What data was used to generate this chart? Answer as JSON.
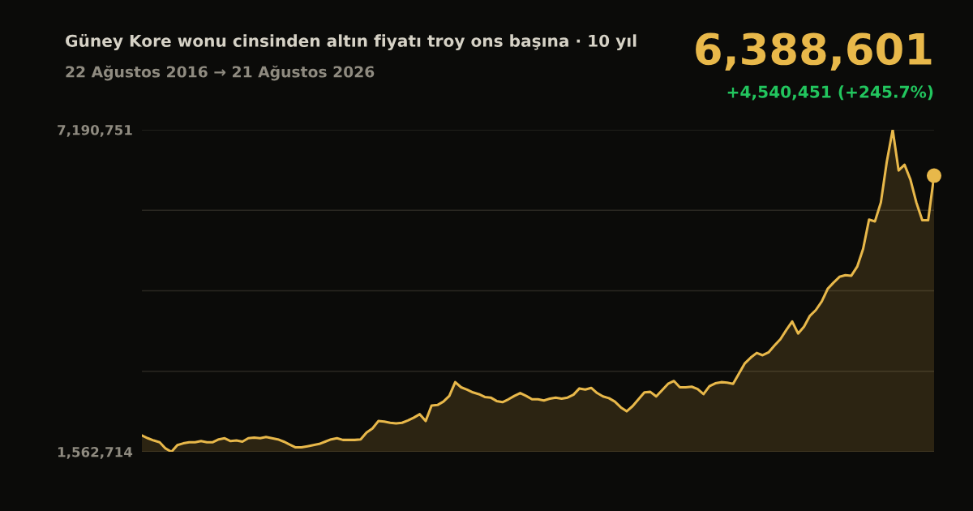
{
  "chart_data": {
    "type": "area",
    "title": "Güney Kore wonu cinsinden altın fiyatı troy ons başına · 10 yıl",
    "subtitle": "22 Ağustos 2016 → 21 Ağustos 2026",
    "annotations": [
      "6,388,601",
      "+4,540,451 (+245.7%)"
    ],
    "ylim": [
      1562714,
      7190751
    ],
    "yticks": [
      {
        "value": 1562714,
        "label": "1,562,714"
      },
      {
        "value": 2969623,
        "label": null
      },
      {
        "value": 4376732,
        "label": null
      },
      {
        "value": 5783642,
        "label": null
      },
      {
        "value": 7190751,
        "label": "7,190,751"
      }
    ],
    "grid": "y",
    "tick_labels": "y",
    "categories": [
      null,
      null,
      null,
      null,
      null,
      null,
      null,
      null,
      null,
      null,
      null,
      null,
      null,
      null,
      null,
      null,
      null,
      null,
      null,
      null,
      null,
      null,
      null,
      null,
      null,
      null,
      null,
      null,
      null,
      null,
      null,
      null,
      null,
      null,
      null,
      null,
      null,
      null,
      null,
      null,
      null,
      null,
      null,
      null,
      null,
      null,
      null,
      null,
      null,
      null,
      null,
      null,
      null,
      null,
      null,
      null,
      null,
      null,
      null,
      null,
      null,
      null,
      null,
      null,
      null,
      null,
      null,
      null,
      null,
      null,
      null,
      null,
      null,
      null,
      null,
      null,
      null,
      null,
      null,
      null,
      null,
      null,
      null,
      null,
      null,
      null,
      null,
      null,
      null,
      null,
      null,
      null,
      null,
      null,
      null,
      null,
      null,
      null,
      null,
      null,
      null,
      null,
      null,
      null,
      null,
      null,
      null,
      null,
      null,
      null,
      null,
      null,
      null,
      null,
      null,
      null,
      null,
      null,
      null,
      null,
      null,
      null,
      null,
      null,
      null,
      null,
      null,
      null,
      null,
      null,
      null,
      null,
      null,
      null,
      null
    ],
    "series": [
      {
        "color": "#e8b84a",
        "values": [
          1848150,
          1800000,
          1760000,
          1730000,
          1620000,
          1562714,
          1680000,
          1710000,
          1730000,
          1730000,
          1750000,
          1730000,
          1730000,
          1780000,
          1800000,
          1750000,
          1760000,
          1740000,
          1800000,
          1810000,
          1800000,
          1820000,
          1800000,
          1780000,
          1740000,
          1690000,
          1640000,
          1640000,
          1660000,
          1680000,
          1700000,
          1740000,
          1780000,
          1800000,
          1770000,
          1770000,
          1770000,
          1780000,
          1900000,
          1970000,
          2100000,
          2090000,
          2070000,
          2060000,
          2070000,
          2110000,
          2160000,
          2220000,
          2100000,
          2370000,
          2380000,
          2440000,
          2540000,
          2780000,
          2690000,
          2650000,
          2600000,
          2570000,
          2520000,
          2510000,
          2450000,
          2430000,
          2480000,
          2540000,
          2590000,
          2540000,
          2480000,
          2480000,
          2460000,
          2490000,
          2510000,
          2490000,
          2510000,
          2560000,
          2670000,
          2650000,
          2680000,
          2590000,
          2530000,
          2500000,
          2440000,
          2340000,
          2270000,
          2360000,
          2480000,
          2600000,
          2610000,
          2530000,
          2640000,
          2750000,
          2800000,
          2690000,
          2690000,
          2700000,
          2660000,
          2570000,
          2710000,
          2760000,
          2780000,
          2770000,
          2750000,
          2930000,
          3110000,
          3210000,
          3290000,
          3250000,
          3300000,
          3420000,
          3530000,
          3690000,
          3840000,
          3630000,
          3750000,
          3940000,
          4040000,
          4190000,
          4410000,
          4520000,
          4620000,
          4650000,
          4640000,
          4800000,
          5110000,
          5620000,
          5590000,
          5920000,
          6630000,
          7190751,
          6480000,
          6580000,
          6320000,
          5920000,
          5610000,
          5610000,
          6388601
        ]
      }
    ]
  }
}
